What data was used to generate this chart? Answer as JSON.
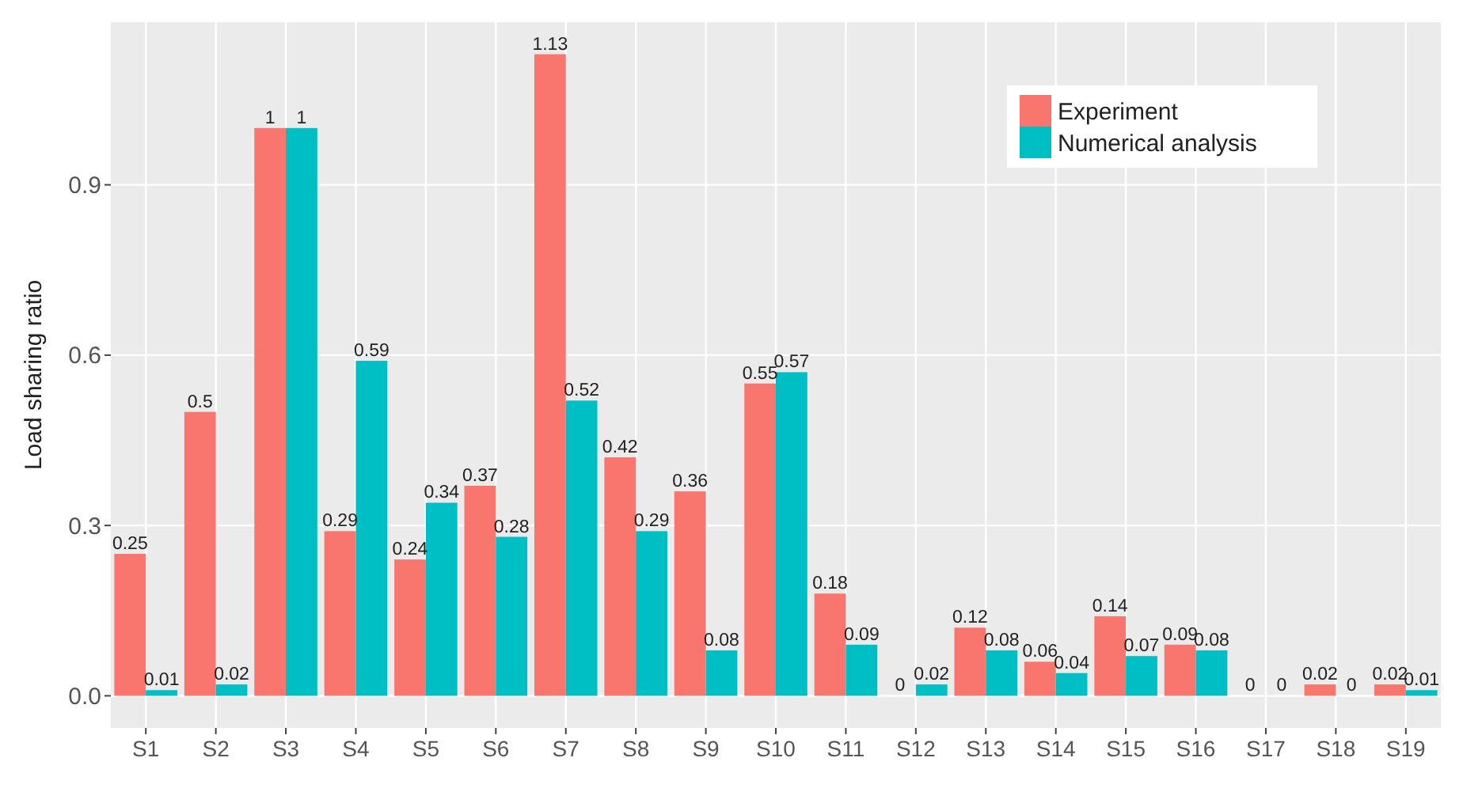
{
  "chart_data": {
    "type": "bar",
    "ylabel": "Load sharing ratio",
    "categories": [
      "S1",
      "S2",
      "S3",
      "S4",
      "S5",
      "S6",
      "S7",
      "S8",
      "S9",
      "S10",
      "S11",
      "S12",
      "S13",
      "S14",
      "S15",
      "S16",
      "S17",
      "S18",
      "S19"
    ],
    "series": [
      {
        "name": "Experiment",
        "color": "#f8766d",
        "values": [
          0.25,
          0.5,
          1,
          0.29,
          0.24,
          0.37,
          1.13,
          0.42,
          0.36,
          0.55,
          0.18,
          0,
          0.12,
          0.06,
          0.14,
          0.09,
          0,
          0.02,
          0.02
        ]
      },
      {
        "name": "Numerical analysis",
        "color": "#00bfc4",
        "values": [
          0.01,
          0.02,
          1,
          0.59,
          0.34,
          0.28,
          0.52,
          0.29,
          0.08,
          0.57,
          0.09,
          0.02,
          0.08,
          0.04,
          0.07,
          0.08,
          0,
          0,
          0.01
        ]
      }
    ],
    "ylim": [
      -0.0565,
      1.1865
    ],
    "yticks": [
      {
        "value": 0,
        "label": "0.0"
      },
      {
        "value": 0.3,
        "label": "0.3"
      },
      {
        "value": 0.6,
        "label": "0.6"
      },
      {
        "value": 0.9,
        "label": "0.9"
      }
    ],
    "grid": true,
    "legend": "top right",
    "data_labels": true
  }
}
